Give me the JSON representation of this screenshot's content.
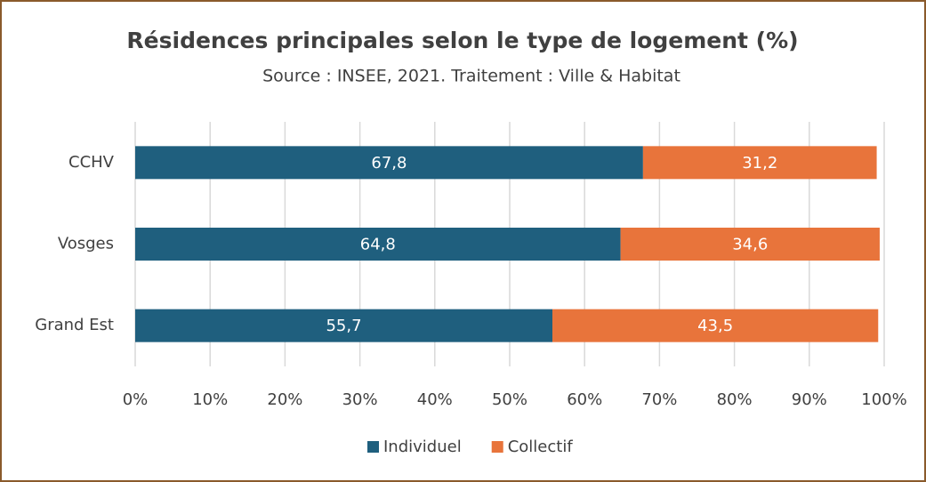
{
  "chart_data": {
    "type": "stacked_bar_horizontal",
    "title": "Résidences principales selon le type de logement (%)",
    "subtitle": "Source : INSEE, 2021. Traitement : Ville & Habitat",
    "categories": [
      "CCHV",
      "Vosges",
      "Grand Est"
    ],
    "series": [
      {
        "name": "Individuel",
        "color": "#1f5f7e",
        "values": [
          67.8,
          64.8,
          55.7
        ],
        "value_labels": [
          "67,8",
          "64,8",
          "55,7"
        ]
      },
      {
        "name": "Collectif",
        "color": "#e8743b",
        "values": [
          31.2,
          34.6,
          43.5
        ],
        "value_labels": [
          "31,2",
          "34,6",
          "43,5"
        ]
      }
    ],
    "xlim": [
      0,
      100
    ],
    "xticks": [
      {
        "value": 0,
        "label": "0%"
      },
      {
        "value": 10,
        "label": "10%"
      },
      {
        "value": 20,
        "label": "20%"
      },
      {
        "value": 30,
        "label": "30%"
      },
      {
        "value": 40,
        "label": "40%"
      },
      {
        "value": 50,
        "label": "50%"
      },
      {
        "value": 60,
        "label": "60%"
      },
      {
        "value": 70,
        "label": "70%"
      },
      {
        "value": 80,
        "label": "80%"
      },
      {
        "value": 90,
        "label": "90%"
      },
      {
        "value": 100,
        "label": "100%"
      }
    ],
    "grid": true,
    "legend": "bottom"
  }
}
